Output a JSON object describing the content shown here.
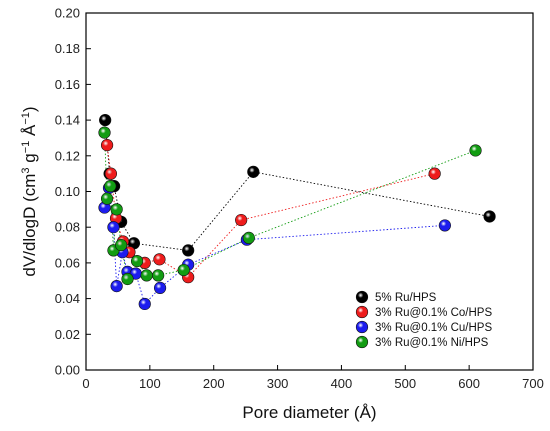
{
  "chart_data": {
    "type": "scatter",
    "title": "",
    "xlabel": "Pore diameter (Å)",
    "ylabel_parts": [
      "dV/dlogD (cm",
      "3",
      " g",
      "−1",
      " Å",
      "−1",
      ")"
    ],
    "xlim": [
      0,
      700
    ],
    "ylim": [
      0.0,
      0.2
    ],
    "xticks": [
      0,
      100,
      200,
      300,
      400,
      500,
      600,
      700
    ],
    "yticks": [
      0.0,
      0.02,
      0.04,
      0.06,
      0.08,
      0.1,
      0.12,
      0.14,
      0.16,
      0.18,
      0.2
    ],
    "xtick_labels": [
      "0",
      "100",
      "200",
      "300",
      "400",
      "500",
      "600",
      "700"
    ],
    "ytick_labels": [
      "0.00",
      "0.02",
      "0.04",
      "0.06",
      "0.08",
      "0.10",
      "0.12",
      "0.14",
      "0.16",
      "0.18",
      "0.20"
    ],
    "grid": false,
    "connected_with": "dotted lines",
    "legend_position": "bottom-right",
    "series": [
      {
        "name": "5% Ru/HPS",
        "color": "#000000",
        "points": [
          [
            30,
            0.14
          ],
          [
            37,
            0.11
          ],
          [
            44,
            0.103
          ],
          [
            55,
            0.083
          ],
          [
            75,
            0.071
          ],
          [
            160,
            0.067
          ],
          [
            262,
            0.111
          ],
          [
            632,
            0.086
          ]
        ]
      },
      {
        "name": "3% Ru@0.1% Co/HPS",
        "color": "#ee1c1c",
        "points": [
          [
            33,
            0.126
          ],
          [
            39,
            0.11
          ],
          [
            47,
            0.085
          ],
          [
            58,
            0.072
          ],
          [
            68,
            0.066
          ],
          [
            92,
            0.06
          ],
          [
            115,
            0.062
          ],
          [
            160,
            0.052
          ],
          [
            243,
            0.084
          ],
          [
            546,
            0.11
          ]
        ]
      },
      {
        "name": "3% Ru@0.1% Cu/HPS",
        "color": "#1c1cee",
        "points": [
          [
            29,
            0.091
          ],
          [
            36,
            0.102
          ],
          [
            43,
            0.08
          ],
          [
            48,
            0.047
          ],
          [
            57,
            0.066
          ],
          [
            65,
            0.055
          ],
          [
            78,
            0.054
          ],
          [
            92,
            0.037
          ],
          [
            116,
            0.046
          ],
          [
            160,
            0.059
          ],
          [
            252,
            0.073
          ],
          [
            562,
            0.081
          ]
        ]
      },
      {
        "name": "3% Ru@0.1% Ni/HPS",
        "color": "#129c12",
        "points": [
          [
            29,
            0.133
          ],
          [
            33,
            0.096
          ],
          [
            38,
            0.103
          ],
          [
            43,
            0.067
          ],
          [
            48,
            0.09
          ],
          [
            55,
            0.07
          ],
          [
            65,
            0.051
          ],
          [
            80,
            0.061
          ],
          [
            95,
            0.053
          ],
          [
            113,
            0.053
          ],
          [
            153,
            0.056
          ],
          [
            255,
            0.074
          ],
          [
            610,
            0.123
          ]
        ]
      }
    ]
  }
}
